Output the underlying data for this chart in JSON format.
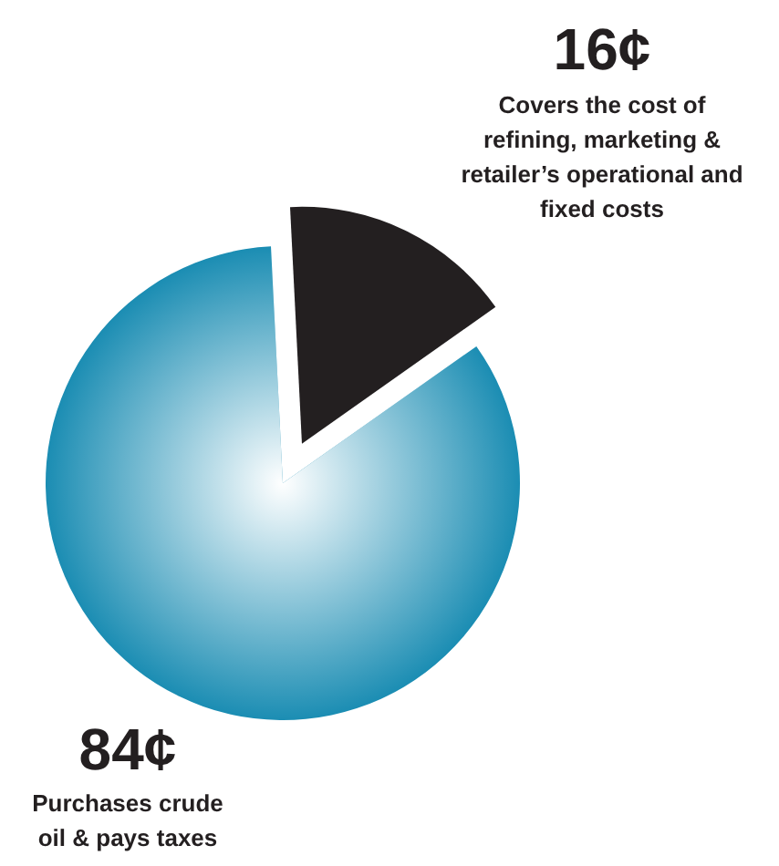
{
  "chart_data": {
    "type": "pie",
    "categories": [
      "Covers the cost of refining, marketing & retailer’s operational and fixed costs",
      "Purchases crude oil & pays taxes"
    ],
    "values": [
      16,
      84
    ],
    "value_labels": [
      "16¢",
      "84¢"
    ],
    "colors": [
      "#231f20",
      "#1b8db3"
    ]
  }
}
